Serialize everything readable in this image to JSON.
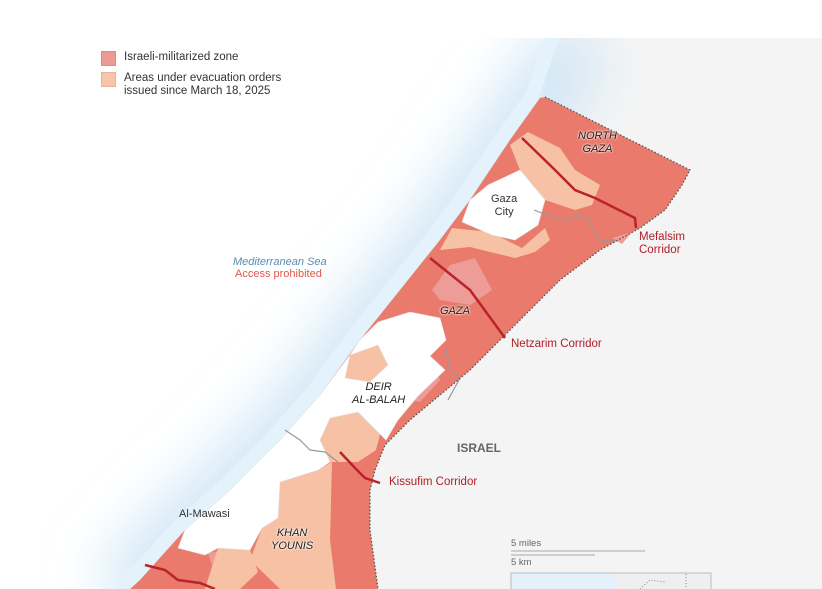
{
  "legend": {
    "items": [
      {
        "label": "Israeli-militarized zone",
        "color": "#ec9a94"
      },
      {
        "label": "Areas under evacuation orders issued since March 18, 2025",
        "line1": "Areas under evacuation orders",
        "line2": "issued since March 18, 2025",
        "color": "#f8c5aa"
      }
    ]
  },
  "colors": {
    "militarized": "#ea7a6b",
    "militarized_light": "#ee9c98",
    "evacuation": "#f7c1a5",
    "corridor_line": "#b9232b",
    "sea": "#dcedf8",
    "land": "#f4f4f4"
  },
  "labels": {
    "sea": "Mediterranean Sea",
    "sea_note": "Access prohibited",
    "north_gaza_1": "NORTH",
    "north_gaza_2": "GAZA",
    "gaza_city_1": "Gaza",
    "gaza_city_2": "City",
    "gaza": "GAZA",
    "deir_1": "DEIR",
    "deir_2": "AL-BALAH",
    "khan_1": "KHAN",
    "khan_2": "YOUNIS",
    "al_mawasi": "Al-Mawasi",
    "israel": "ISRAEL",
    "mefalsim_1": "Mefalsim",
    "mefalsim_2": "Corridor",
    "netzarim": "Netzarim Corridor",
    "kissufim": "Kissufim Corridor"
  },
  "scale": {
    "miles": "5 miles",
    "km": "5 km"
  }
}
